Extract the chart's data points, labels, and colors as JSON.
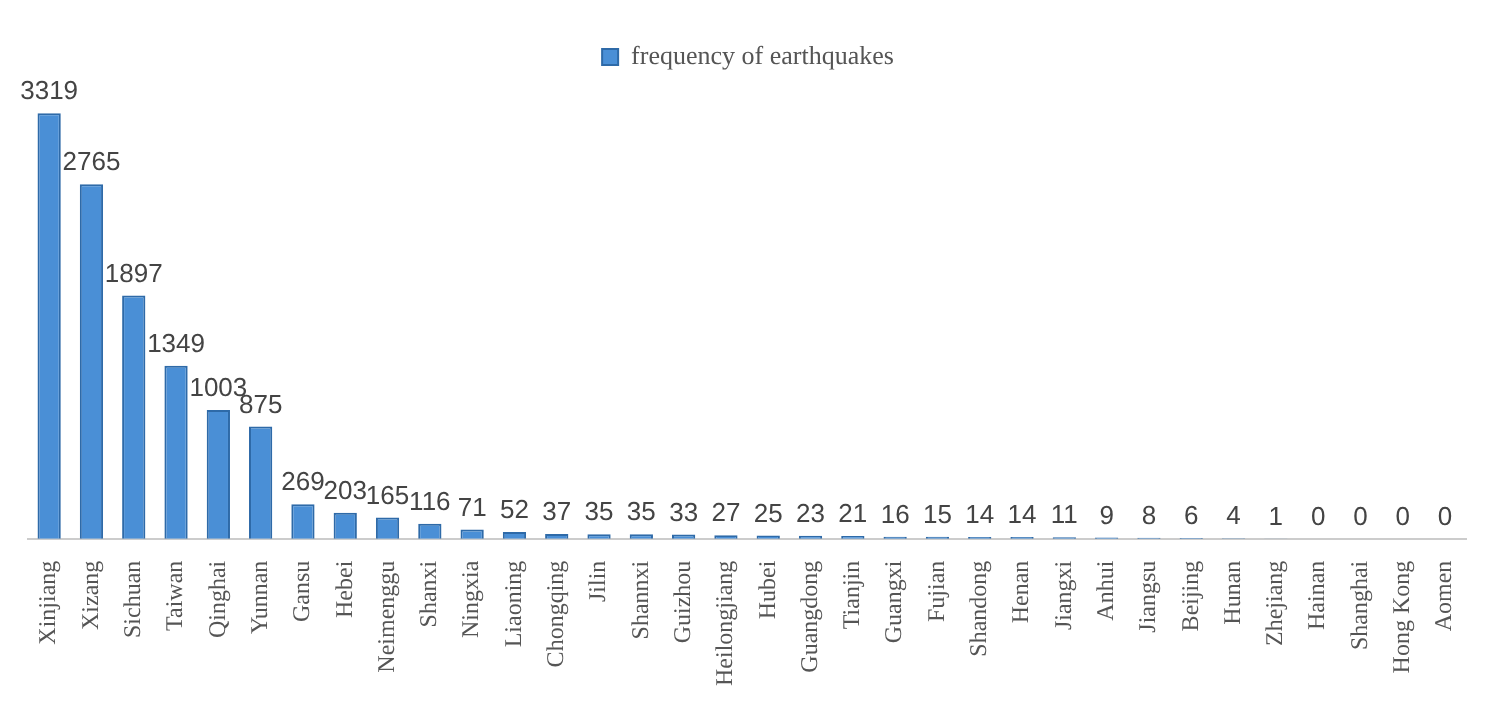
{
  "chart_data": {
    "type": "bar",
    "categories": [
      "Xinjiang",
      "Xizang",
      "Sichuan",
      "Taiwan",
      "Qinghai",
      "Yunnan",
      "Gansu",
      "Hebei",
      "Neimenggu",
      "Shanxi",
      "Ningxia",
      "Liaoning",
      "Chongqing",
      "Jilin",
      "Shannxi",
      "Guizhou",
      "Heilongjiang",
      "Hubei",
      "Guangdong",
      "Tianjin",
      "Guangxi",
      "Fujian",
      "Shandong",
      "Henan",
      "Jiangxi",
      "Anhui",
      "Jiangsu",
      "Beijing",
      "Hunan",
      "Zhejiang",
      "Hainan",
      "Shanghai",
      "Hong Kong",
      "Aomen"
    ],
    "series": [
      {
        "name": "frequency of earthquakes",
        "color": "#4a8fd6",
        "values": [
          3319,
          2765,
          1897,
          1349,
          1003,
          875,
          269,
          203,
          165,
          116,
          71,
          52,
          37,
          35,
          35,
          33,
          27,
          25,
          23,
          21,
          16,
          15,
          14,
          14,
          11,
          9,
          8,
          6,
          4,
          1,
          0,
          0,
          0,
          0
        ]
      }
    ],
    "data_labels": true,
    "legend": "top",
    "grid": false
  }
}
